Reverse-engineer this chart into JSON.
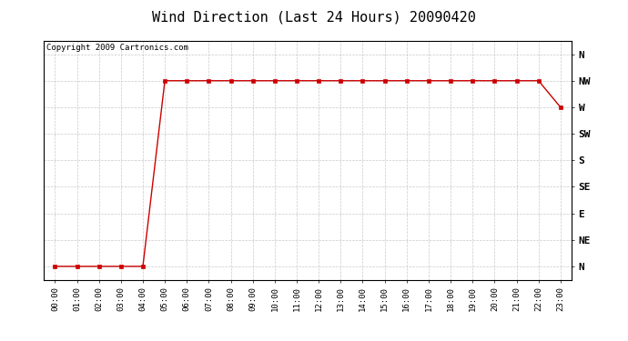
{
  "title": "Wind Direction (Last 24 Hours) 20090420",
  "copyright": "Copyright 2009 Cartronics.com",
  "x_labels": [
    "00:00",
    "01:00",
    "02:00",
    "03:00",
    "04:00",
    "05:00",
    "06:00",
    "07:00",
    "08:00",
    "09:00",
    "10:00",
    "11:00",
    "12:00",
    "13:00",
    "14:00",
    "15:00",
    "16:00",
    "17:00",
    "18:00",
    "19:00",
    "20:00",
    "21:00",
    "22:00",
    "23:00"
  ],
  "y_labels": [
    "N",
    "NE",
    "E",
    "SE",
    "S",
    "SW",
    "W",
    "NW",
    "N"
  ],
  "y_values": [
    0,
    1,
    2,
    3,
    4,
    5,
    6,
    7,
    8
  ],
  "wind_data_x": [
    0,
    1,
    2,
    3,
    4,
    5,
    6,
    7,
    8,
    9,
    10,
    11,
    12,
    13,
    14,
    15,
    16,
    17,
    18,
    19,
    20,
    21,
    22,
    23
  ],
  "wind_data_y": [
    0,
    0,
    0,
    0,
    0,
    7,
    7,
    7,
    7,
    7,
    7,
    7,
    7,
    7,
    7,
    7,
    7,
    7,
    7,
    7,
    7,
    7,
    7,
    6
  ],
  "line_color": "#cc0000",
  "marker": "s",
  "marker_size": 2.5,
  "bg_color": "#ffffff",
  "grid_color": "#bbbbbb",
  "title_fontsize": 11,
  "copyright_fontsize": 6.5
}
